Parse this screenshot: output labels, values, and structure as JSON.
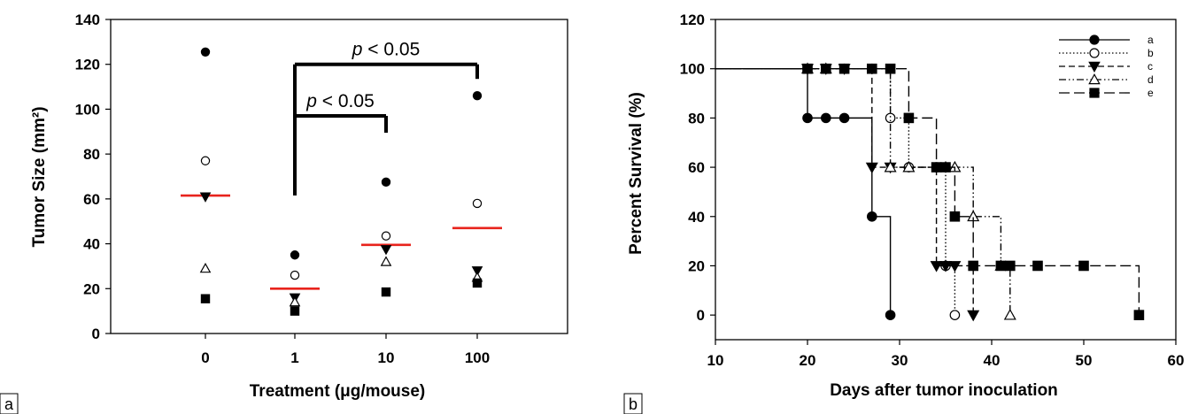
{
  "chart_data": [
    {
      "type": "scatter",
      "panel_label": "a",
      "xlabel": "Treatment (μg/mouse)",
      "ylabel": "Tumor Size (mm²)",
      "categories": [
        "0",
        "1",
        "10",
        "100"
      ],
      "ylim": [
        0,
        140
      ],
      "yticks": [
        0,
        20,
        40,
        60,
        80,
        100,
        120,
        140
      ],
      "grid": false,
      "marker_legend": {
        "a": "filled-circle",
        "b": "open-circle",
        "c": "filled-down-triangle",
        "d": "open-up-triangle",
        "e": "filled-square"
      },
      "points": [
        {
          "category": "0",
          "values": {
            "a": 125.5,
            "b": 77,
            "c": 61,
            "d": 29,
            "e": 15.5
          }
        },
        {
          "category": "1",
          "values": {
            "a": 35,
            "b": 26,
            "c": 16,
            "d": 14,
            "e": 10
          }
        },
        {
          "category": "10",
          "values": {
            "a": 67.5,
            "b": 43.5,
            "c": 37.5,
            "d": 32,
            "e": 18.5
          }
        },
        {
          "category": "100",
          "values": {
            "a": 106,
            "b": 58,
            "c": 28,
            "d": 25,
            "e": 22.5
          }
        }
      ],
      "means": [
        {
          "category": "0",
          "value": 61.5
        },
        {
          "category": "1",
          "value": 20
        },
        {
          "category": "10",
          "value": 39.5
        },
        {
          "category": "100",
          "value": 47
        }
      ],
      "mean_color": "#e8231c",
      "annotations": [
        {
          "text": "p < 0.05",
          "from": "1",
          "to": "10",
          "level": 97
        },
        {
          "text": "p < 0.05",
          "from": "1",
          "to": "100",
          "level": 120
        }
      ]
    },
    {
      "type": "line",
      "step": true,
      "panel_label": "b",
      "xlabel": "Days after tumor inoculation",
      "ylabel": "Percent Survival (%)",
      "xlim": [
        10,
        60
      ],
      "ylim": [
        -10,
        120
      ],
      "xticks": [
        10,
        20,
        30,
        40,
        50,
        60
      ],
      "yticks": [
        0,
        20,
        40,
        60,
        80,
        100,
        120
      ],
      "grid": false,
      "legend_position": "top-right",
      "series": [
        {
          "name": "a",
          "marker": "filled-circle",
          "dash": "solid",
          "x": [
            10,
            20,
            22,
            24,
            27,
            29
          ],
          "y": [
            100,
            80,
            80,
            80,
            40,
            0
          ]
        },
        {
          "name": "b",
          "marker": "open-circle",
          "dash": "dotted",
          "x": [
            10,
            20,
            22,
            24,
            27,
            29,
            31,
            34,
            35,
            36
          ],
          "y": [
            100,
            100,
            100,
            100,
            100,
            80,
            60,
            60,
            20,
            0
          ]
        },
        {
          "name": "c",
          "marker": "filled-down-triangle",
          "dash": "dashed",
          "x": [
            10,
            20,
            22,
            24,
            27,
            29,
            34,
            35,
            36,
            38
          ],
          "y": [
            100,
            100,
            100,
            100,
            60,
            60,
            20,
            20,
            20,
            0
          ]
        },
        {
          "name": "d",
          "marker": "open-up-triangle",
          "dash": "dash-dot-dot",
          "x": [
            10,
            20,
            22,
            29,
            31,
            35,
            36,
            38,
            41,
            42
          ],
          "y": [
            100,
            100,
            100,
            60,
            60,
            60,
            60,
            40,
            20,
            0
          ]
        },
        {
          "name": "e",
          "marker": "filled-square",
          "dash": "long-dash",
          "x": [
            10,
            20,
            22,
            24,
            27,
            29,
            31,
            34,
            35,
            36,
            38,
            41,
            42,
            45,
            50,
            56
          ],
          "y": [
            100,
            100,
            100,
            100,
            100,
            100,
            80,
            60,
            60,
            40,
            20,
            20,
            20,
            20,
            20,
            0
          ]
        }
      ]
    }
  ]
}
